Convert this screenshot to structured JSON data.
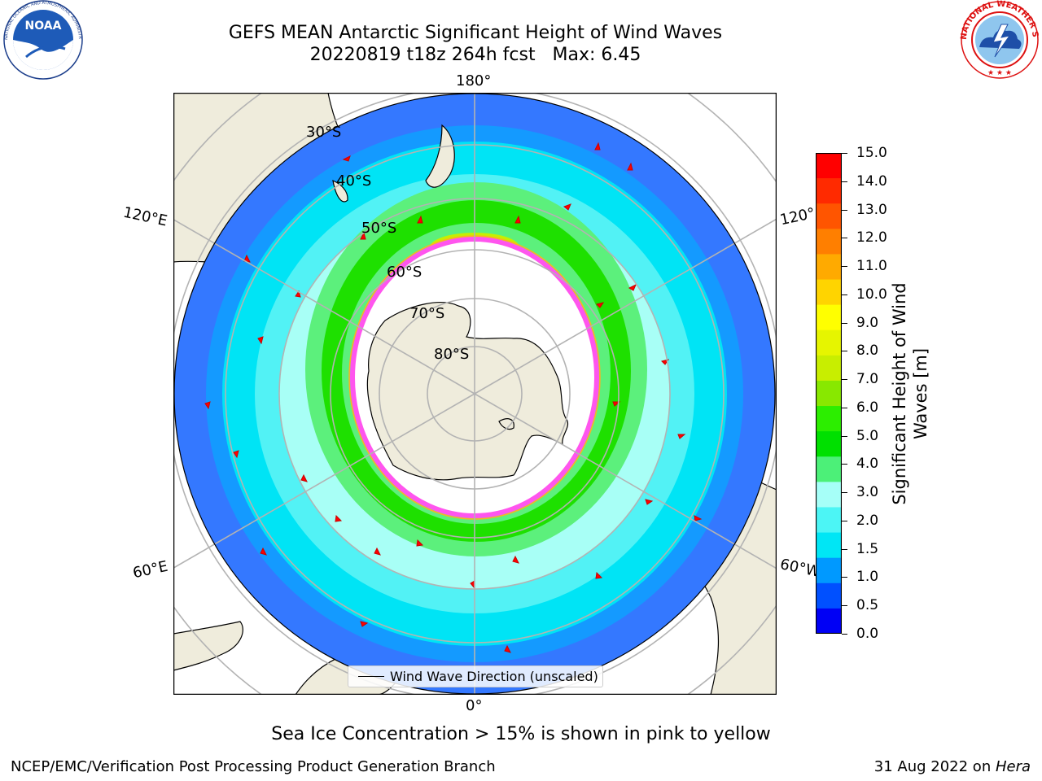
{
  "title": {
    "line1": "GEFS MEAN Antarctic Significant Height of Wind Waves",
    "line2": "20220819 t18z 264h fcst   Max: 6.45"
  },
  "logos": {
    "left": {
      "text": "NOAA",
      "ring_text": "NATIONAL OCEANIC AND ATMOSPHERIC ADMINISTRATION · U.S. DEPARTMENT OF COMMERCE"
    },
    "right": {
      "ring_text": "NATIONAL WEATHER SERVICE"
    }
  },
  "map": {
    "lon_labels": [
      "180°",
      "120°E",
      "120°",
      "60°E",
      "60°W",
      "0°"
    ],
    "lat_labels": [
      "30°S",
      "40°S",
      "50°S",
      "60°S",
      "70°S",
      "80°S"
    ],
    "legend_text": "Wind Wave Direction (unscaled)"
  },
  "colorbar": {
    "label": "Significant Height of Wind Waves [m]",
    "label_line1": "Significant Height of Wind",
    "label_line2": "Waves [m]",
    "ticks": [
      "15.0",
      "14.0",
      "13.0",
      "12.0",
      "11.0",
      "10.0",
      "9.0",
      "8.0",
      "7.0",
      "6.0",
      "5.0",
      "4.0",
      "3.0",
      "2.0",
      "1.5",
      "1.0",
      "0.5",
      "0.0"
    ],
    "colors": [
      "#ff0000",
      "#ff2a00",
      "#ff5500",
      "#ff7f00",
      "#ffaa00",
      "#ffd400",
      "#ffff00",
      "#e6f500",
      "#c8ee00",
      "#88e800",
      "#2cee00",
      "#00e000",
      "#4cf078",
      "#a6fff8",
      "#4cf5f5",
      "#00e6f5",
      "#0099ff",
      "#0050ff",
      "#0000f5"
    ]
  },
  "note": "Sea Ice Concentration > 15% is shown in pink to yellow",
  "footer": {
    "left": "NCEP/EMC/Verification Post Processing Product Generation Branch",
    "right_prefix": "31 Aug 2022 on ",
    "right_italic": "Hera"
  }
}
